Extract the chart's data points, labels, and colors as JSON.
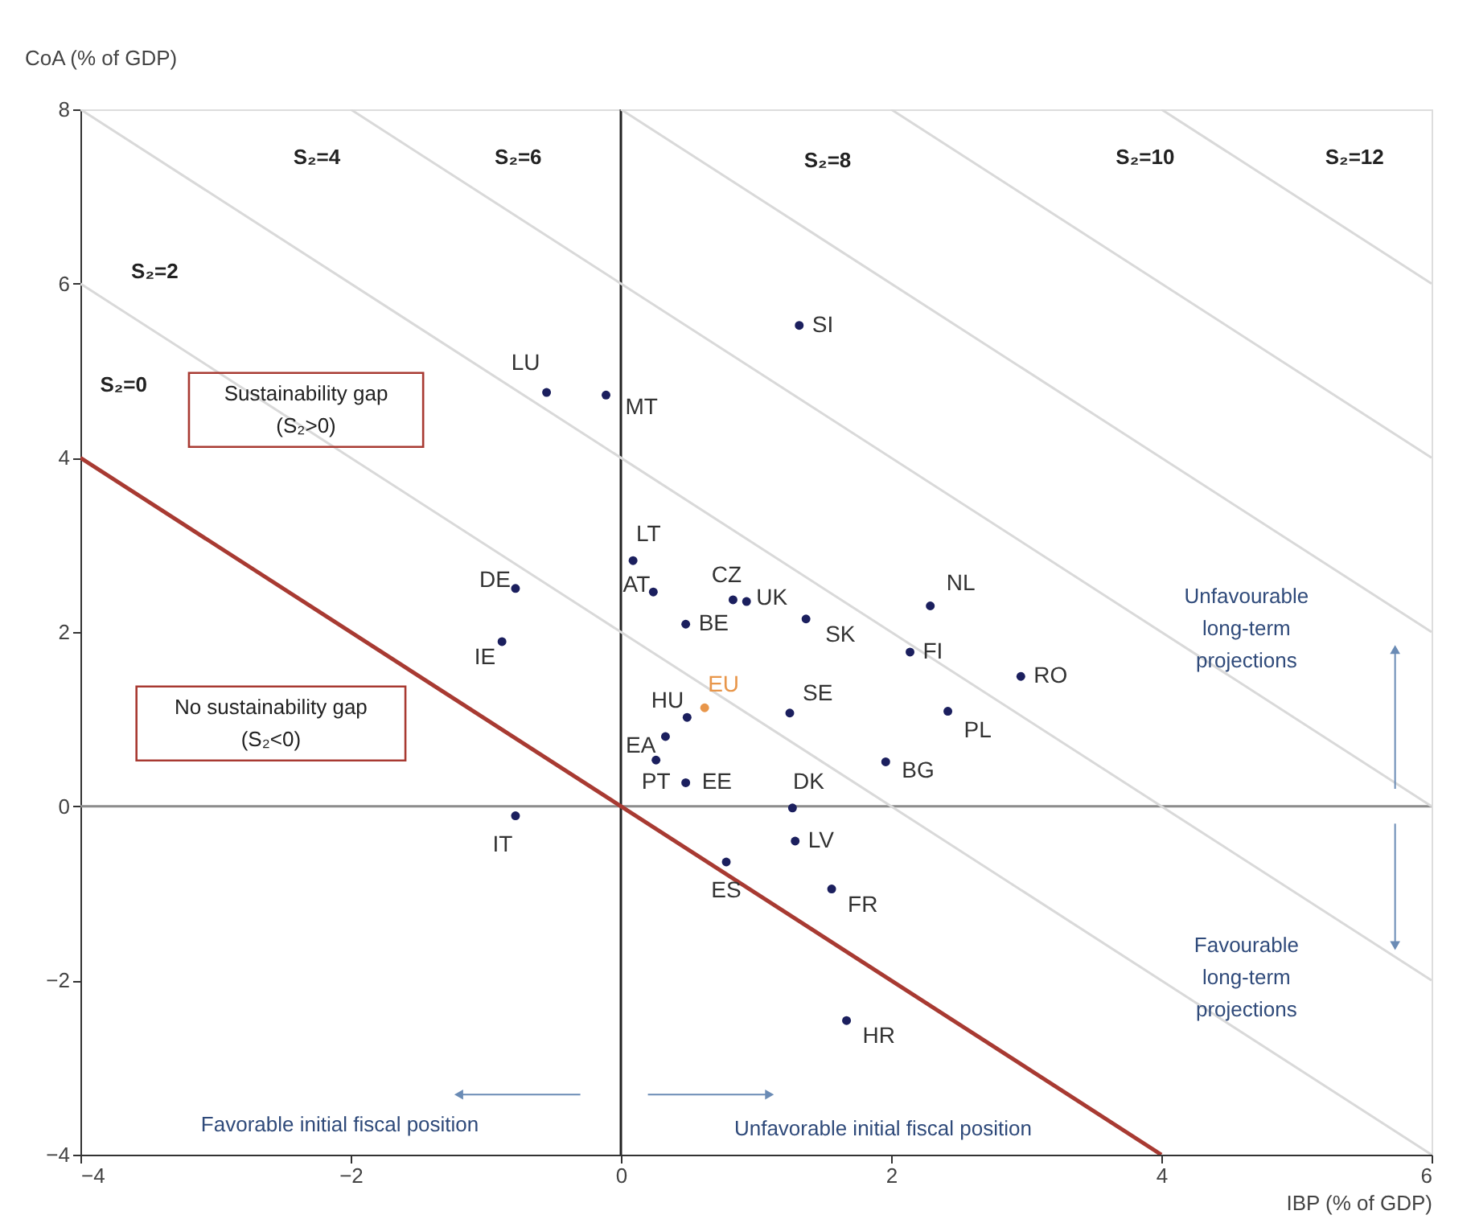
{
  "chart_data": {
    "type": "scatter",
    "xlabel": "IBP (% of GDP)",
    "ylabel": "CoA (% of GDP)",
    "xlim": [
      -4,
      6
    ],
    "ylim": [
      -4,
      8
    ],
    "xticks": [
      -4,
      -2,
      0,
      2,
      4,
      6
    ],
    "yticks": [
      -4,
      -2,
      0,
      2,
      4,
      6,
      8
    ],
    "grid": false,
    "marker": "circle",
    "series": [
      {
        "type": "line",
        "marker": "none",
        "color": "#d9d9d9",
        "x": [
          -4,
          6
        ],
        "values": [
          6,
          -4
        ]
      },
      {
        "type": "line",
        "marker": "none",
        "color": "#d9d9d9",
        "x": [
          -4,
          6
        ],
        "values": [
          8,
          -2
        ]
      },
      {
        "type": "line",
        "marker": "none",
        "color": "#d9d9d9",
        "x": [
          -2,
          6
        ],
        "values": [
          8,
          0
        ]
      },
      {
        "type": "line",
        "marker": "none",
        "color": "#d9d9d9",
        "x": [
          0,
          6
        ],
        "values": [
          8,
          2
        ]
      },
      {
        "type": "line",
        "marker": "none",
        "color": "#d9d9d9",
        "x": [
          2,
          6
        ],
        "values": [
          8,
          4
        ]
      },
      {
        "type": "line",
        "marker": "none",
        "color": "#d9d9d9",
        "x": [
          4,
          6
        ],
        "values": [
          8,
          6
        ]
      },
      {
        "type": "line",
        "marker": "none",
        "color": "#a83a32",
        "x": [
          -4,
          4
        ],
        "values": [
          4,
          -4
        ]
      },
      {
        "name": "SI",
        "color": "#1b1f5e",
        "x": [
          1.32
        ],
        "values": [
          5.52
        ]
      },
      {
        "name": "LU",
        "color": "#1b1f5e",
        "x": [
          -0.55
        ],
        "values": [
          4.75
        ]
      },
      {
        "name": "MT",
        "color": "#1b1f5e",
        "x": [
          -0.11
        ],
        "values": [
          4.72
        ]
      },
      {
        "name": "LT",
        "color": "#1b1f5e",
        "x": [
          0.09
        ],
        "values": [
          2.82
        ]
      },
      {
        "name": "DE",
        "color": "#1b1f5e",
        "x": [
          -0.78
        ],
        "values": [
          2.5
        ]
      },
      {
        "name": "AT",
        "color": "#1b1f5e",
        "x": [
          0.24
        ],
        "values": [
          2.46
        ]
      },
      {
        "name": "CZ",
        "color": "#1b1f5e",
        "x": [
          0.83
        ],
        "values": [
          2.37
        ]
      },
      {
        "name": "UK",
        "color": "#1b1f5e",
        "x": [
          0.93
        ],
        "values": [
          2.35
        ]
      },
      {
        "name": "SK",
        "color": "#1b1f5e",
        "x": [
          1.37
        ],
        "values": [
          2.15
        ]
      },
      {
        "name": "BE",
        "color": "#1b1f5e",
        "x": [
          0.48
        ],
        "values": [
          2.09
        ]
      },
      {
        "name": "IE",
        "color": "#1b1f5e",
        "x": [
          -0.88
        ],
        "values": [
          1.89
        ]
      },
      {
        "name": "NL",
        "color": "#1b1f5e",
        "x": [
          2.29
        ],
        "values": [
          2.3
        ]
      },
      {
        "name": "FI",
        "color": "#1b1f5e",
        "x": [
          2.14
        ],
        "values": [
          1.77
        ]
      },
      {
        "name": "RO",
        "color": "#1b1f5e",
        "x": [
          2.96
        ],
        "values": [
          1.49
        ]
      },
      {
        "name": "PL",
        "color": "#1b1f5e",
        "x": [
          2.42
        ],
        "values": [
          1.09
        ]
      },
      {
        "name": "BG",
        "color": "#1b1f5e",
        "x": [
          1.96
        ],
        "values": [
          0.51
        ]
      },
      {
        "name": "SE",
        "color": "#1b1f5e",
        "x": [
          1.25
        ],
        "values": [
          1.07
        ]
      },
      {
        "name": "EU",
        "color": "#e8964a",
        "x": [
          0.62
        ],
        "values": [
          1.13
        ]
      },
      {
        "name": "HU",
        "color": "#1b1f5e",
        "x": [
          0.49
        ],
        "values": [
          1.02
        ]
      },
      {
        "name": "EA",
        "color": "#1b1f5e",
        "x": [
          0.33
        ],
        "values": [
          0.8
        ]
      },
      {
        "name": "PT",
        "color": "#1b1f5e",
        "x": [
          0.26
        ],
        "values": [
          0.53
        ]
      },
      {
        "name": "EE",
        "color": "#1b1f5e",
        "x": [
          0.48
        ],
        "values": [
          0.27
        ]
      },
      {
        "name": "DK",
        "color": "#1b1f5e",
        "x": [
          1.27
        ],
        "values": [
          -0.02
        ]
      },
      {
        "name": "IT",
        "color": "#1b1f5e",
        "x": [
          -0.78
        ],
        "values": [
          -0.11
        ]
      },
      {
        "name": "LV",
        "color": "#1b1f5e",
        "x": [
          1.29
        ],
        "values": [
          -0.4
        ]
      },
      {
        "name": "ES",
        "color": "#1b1f5e",
        "x": [
          0.78
        ],
        "values": [
          -0.64
        ]
      },
      {
        "name": "FR",
        "color": "#1b1f5e",
        "x": [
          1.56
        ],
        "values": [
          -0.95
        ]
      },
      {
        "name": "HR",
        "color": "#1b1f5e",
        "x": [
          1.67
        ],
        "values": [
          -2.46
        ]
      }
    ],
    "ref_lines": [
      {
        "axis": "x",
        "value": 0,
        "color": "#222222"
      },
      {
        "axis": "y",
        "value": 0,
        "color": "#8c8c8c"
      }
    ],
    "annotations": [
      "Sustainability gap\n(S₂>0)",
      "No sustainability gap\n(S₂<0)",
      "S₂=0",
      "S₂=2",
      "S₂=4",
      "S₂=6",
      "S₂=8",
      "S₂=10",
      "S₂=12",
      "Unfavourable\nlong-term\nprojections",
      "Favourable\nlong-term\nprojections",
      "Favorable initial fiscal position",
      "Unfavorable initial fiscal position"
    ]
  }
}
